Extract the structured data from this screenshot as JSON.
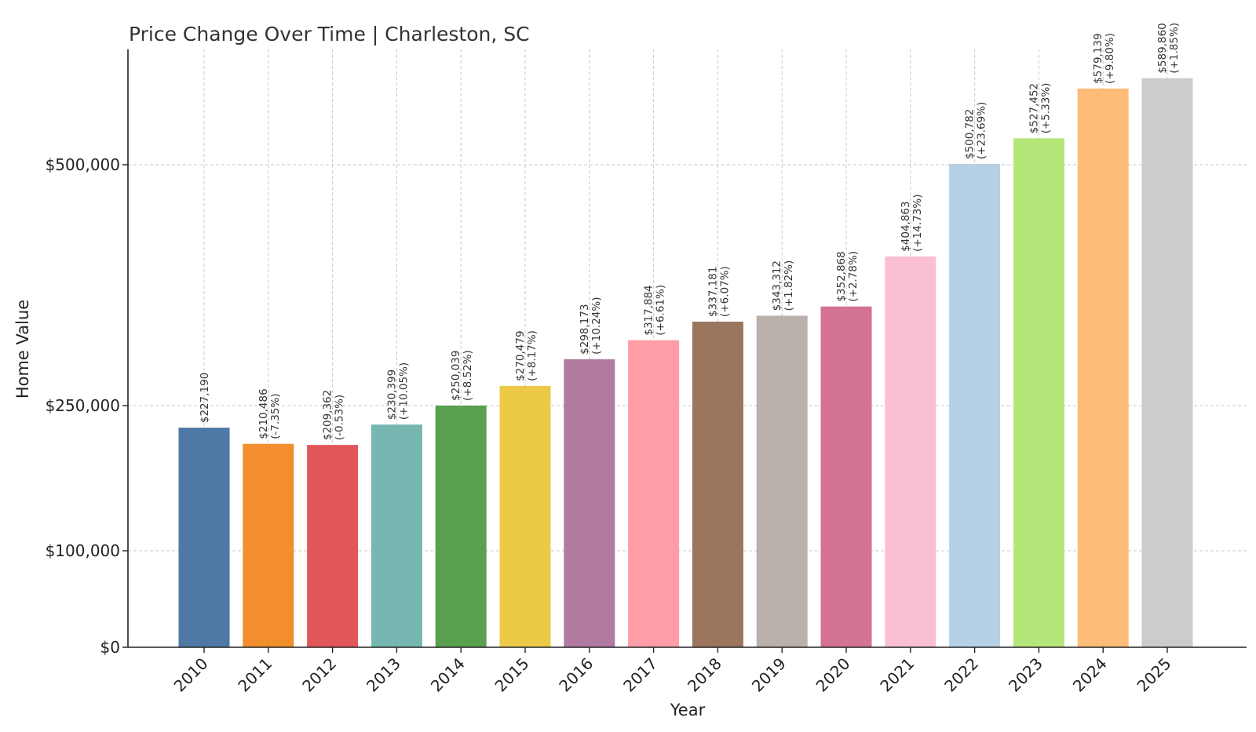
{
  "chart_data": {
    "type": "bar",
    "title": "Price Change Over Time | Charleston, SC",
    "xlabel": "Year",
    "ylabel": "Home Value",
    "categories": [
      "2010",
      "2011",
      "2012",
      "2013",
      "2014",
      "2015",
      "2016",
      "2017",
      "2018",
      "2019",
      "2020",
      "2021",
      "2022",
      "2023",
      "2024",
      "2025"
    ],
    "values": [
      227190,
      210486,
      209362,
      230399,
      250039,
      270479,
      298173,
      317884,
      337181,
      343312,
      352868,
      404863,
      500782,
      527452,
      579139,
      589860
    ],
    "value_labels": [
      "$227,190",
      "$210,486",
      "$209,362",
      "$230,399",
      "$250,039",
      "$270,479",
      "$298,173",
      "$317,884",
      "$337,181",
      "$343,312",
      "$352,868",
      "$404,863",
      "$500,782",
      "$527,452",
      "$579,139",
      "$589,860"
    ],
    "change_labels": [
      "",
      "(-7.35%)",
      "(-0.53%)",
      "(+10.05%)",
      "(+8.52%)",
      "(+8.17%)",
      "(+10.24%)",
      "(+6.61%)",
      "(+6.07%)",
      "(+1.82%)",
      "(+2.78%)",
      "(+14.73%)",
      "(+23.69%)",
      "(+5.33%)",
      "(+9.80%)",
      "(+1.85%)"
    ],
    "colors": [
      "#4e79a7",
      "#f28e2b",
      "#e15759",
      "#76b7b2",
      "#59a14f",
      "#edc948",
      "#b07aa1",
      "#ff9da7",
      "#9c755f",
      "#bab0ac",
      "#d37295",
      "#fabfd2",
      "#b6d0e6",
      "#b5e67a",
      "#ffbb78",
      "#cccccc"
    ],
    "yticks": [
      0,
      100000,
      250000,
      500000
    ],
    "ytick_labels": [
      "$0",
      "$100,000",
      "$250,000",
      "$500,000"
    ],
    "ylim": [
      0,
      620000
    ],
    "grid": true
  }
}
